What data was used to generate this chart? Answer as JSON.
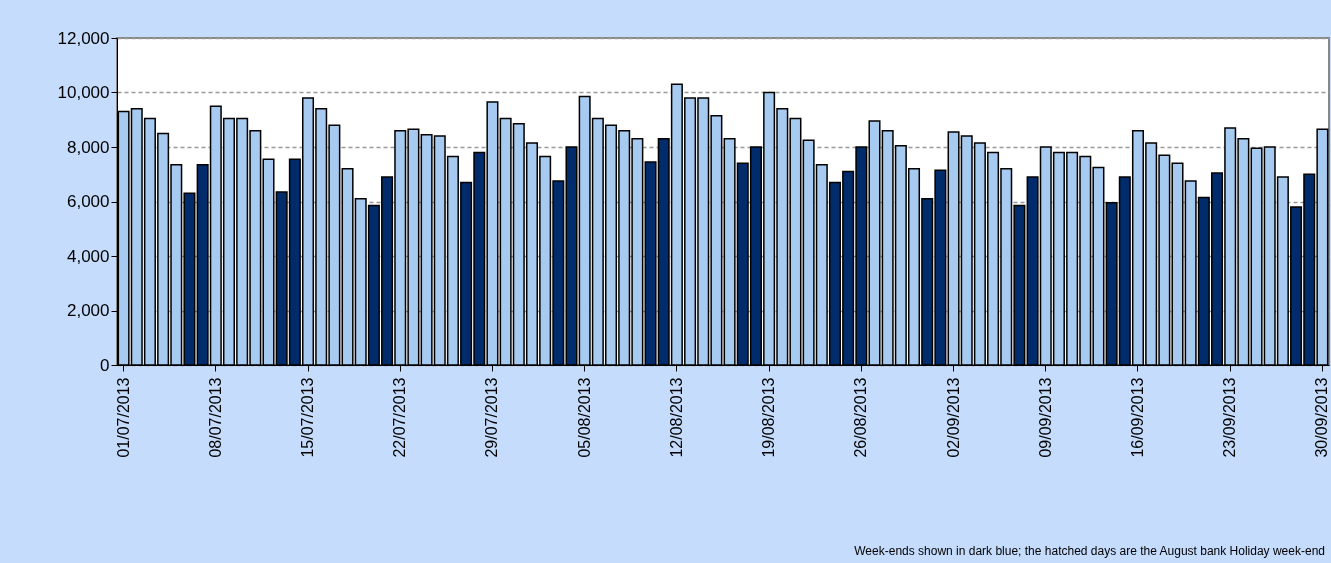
{
  "chart_data": {
    "type": "bar",
    "categories": [
      "01/07/2013",
      null,
      null,
      null,
      null,
      null,
      null,
      "08/07/2013",
      null,
      null,
      null,
      null,
      null,
      null,
      "15/07/2013",
      null,
      null,
      null,
      null,
      null,
      null,
      "22/07/2013",
      null,
      null,
      null,
      null,
      null,
      null,
      "29/07/2013",
      null,
      null,
      null,
      null,
      null,
      null,
      "05/08/2013",
      null,
      null,
      null,
      null,
      null,
      null,
      "12/08/2013",
      null,
      null,
      null,
      null,
      null,
      null,
      "19/08/2013",
      null,
      null,
      null,
      null,
      null,
      null,
      "26/08/2013",
      null,
      null,
      null,
      null,
      null,
      null,
      "02/09/2013",
      null,
      null,
      null,
      null,
      null,
      null,
      "09/09/2013",
      null,
      null,
      null,
      null,
      null,
      null,
      "16/09/2013",
      null,
      null,
      null,
      null,
      null,
      null,
      "23/09/2013",
      null,
      null,
      null,
      null,
      null,
      null,
      "30/09/2013"
    ],
    "values": [
      9300,
      9400,
      9050,
      8500,
      7350,
      6300,
      7350,
      9500,
      9050,
      9050,
      8600,
      7550,
      6350,
      7550,
      9800,
      9400,
      8800,
      7200,
      6100,
      5850,
      6900,
      8600,
      8650,
      8450,
      8400,
      7650,
      6700,
      7800,
      9650,
      9050,
      8850,
      8150,
      7650,
      6750,
      8000,
      9850,
      9050,
      8800,
      8600,
      8300,
      7450,
      8300,
      10300,
      9800,
      9800,
      9150,
      8300,
      7400,
      8000,
      10000,
      9400,
      9050,
      8250,
      7350,
      6700,
      7100,
      8000,
      8950,
      8600,
      8050,
      7200,
      6100,
      7150,
      8550,
      8400,
      8150,
      7800,
      7200,
      5850,
      6900,
      8000,
      7800,
      7800,
      7650,
      7250,
      5950,
      6900,
      8600,
      8150,
      7700,
      7400,
      6750,
      6150,
      7050,
      8700,
      8300,
      7950,
      8000,
      6900,
      5800,
      7000,
      8650
    ],
    "colors": [
      "#a6caf0",
      "#a6caf0",
      "#a6caf0",
      "#a6caf0",
      "#a6caf0",
      "#002c6b",
      "#002c6b",
      "#a6caf0",
      "#a6caf0",
      "#a6caf0",
      "#a6caf0",
      "#a6caf0",
      "#002c6b",
      "#002c6b",
      "#a6caf0",
      "#a6caf0",
      "#a6caf0",
      "#a6caf0",
      "#a6caf0",
      "#002c6b",
      "#002c6b",
      "#a6caf0",
      "#a6caf0",
      "#a6caf0",
      "#a6caf0",
      "#a6caf0",
      "#002c6b",
      "#002c6b",
      "#a6caf0",
      "#a6caf0",
      "#a6caf0",
      "#a6caf0",
      "#a6caf0",
      "#002c6b",
      "#002c6b",
      "#a6caf0",
      "#a6caf0",
      "#a6caf0",
      "#a6caf0",
      "#a6caf0",
      "#002c6b",
      "#002c6b",
      "#a6caf0",
      "#a6caf0",
      "#a6caf0",
      "#a6caf0",
      "#a6caf0",
      "#002c6b",
      "#002c6b",
      "#a6caf0",
      "#a6caf0",
      "#a6caf0",
      "#a6caf0",
      "#a6caf0",
      "#002c6b",
      "#002c6b",
      "#002c6b",
      "#a6caf0",
      "#a6caf0",
      "#a6caf0",
      "#a6caf0",
      "#002c6b",
      "#002c6b",
      "#a6caf0",
      "#a6caf0",
      "#a6caf0",
      "#a6caf0",
      "#a6caf0",
      "#002c6b",
      "#002c6b",
      "#a6caf0",
      "#a6caf0",
      "#a6caf0",
      "#a6caf0",
      "#a6caf0",
      "#002c6b",
      "#002c6b",
      "#a6caf0",
      "#a6caf0",
      "#a6caf0",
      "#a6caf0",
      "#a6caf0",
      "#002c6b",
      "#002c6b",
      "#a6caf0",
      "#a6caf0",
      "#a6caf0",
      "#a6caf0",
      "#a6caf0",
      "#002c6b",
      "#002c6b",
      "#a6caf0"
    ],
    "ylim": [
      0,
      12000
    ],
    "yticks": [
      0,
      {
        "value": 2000,
        "label": "2,000"
      },
      {
        "value": 4000,
        "label": "4,000"
      },
      {
        "value": 6000,
        "label": "6,000"
      },
      {
        "value": 8000,
        "label": "8,000"
      },
      {
        "value": 10000,
        "label": "10,000"
      },
      {
        "value": 12000,
        "label": "12,000"
      }
    ],
    "grid": "y",
    "annotations": [
      "Week-ends shown in dark blue; the hatched days are the August bank Holiday week-end"
    ]
  }
}
